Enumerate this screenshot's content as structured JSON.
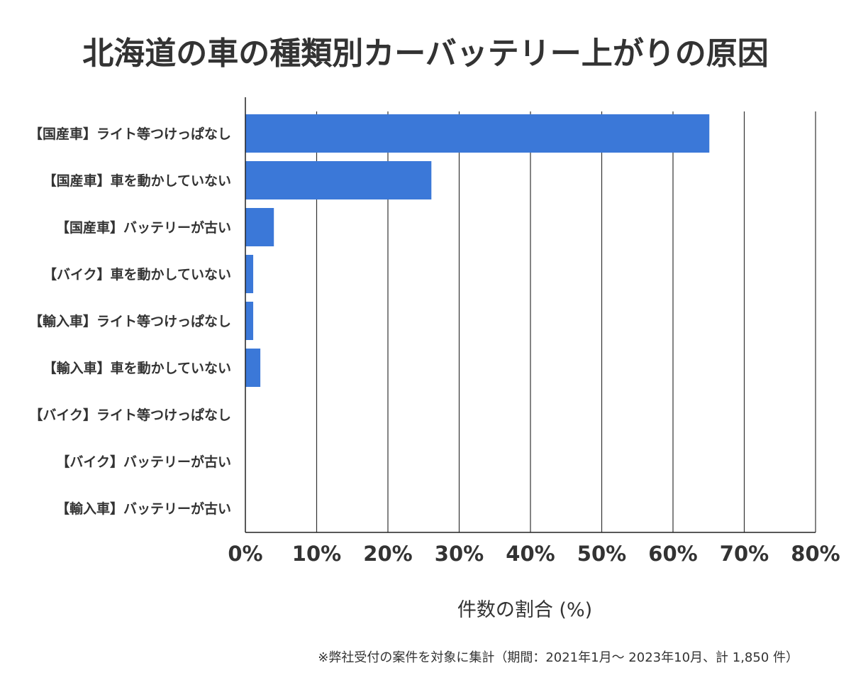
{
  "chart_data": {
    "type": "bar",
    "orientation": "horizontal",
    "title": "北海道の車の種類別カーバッテリー上がりの原因",
    "xlabel": "件数の割合 (%)",
    "ylabel": "",
    "xlim": [
      0,
      80
    ],
    "ticks": [
      0,
      10,
      20,
      30,
      40,
      50,
      60,
      70,
      80
    ],
    "tick_labels": [
      "0%",
      "10%",
      "20%",
      "30%",
      "40%",
      "50%",
      "60%",
      "70%",
      "80%"
    ],
    "grid": true,
    "bar_color": "#3b78d8",
    "categories": [
      "【国産車】ライト等つけっぱなし",
      "【国産車】車を動かしていない",
      "【国産車】バッテリーが古い",
      "【バイク】車を動かしていない",
      "【輸入車】ライト等つけっぱなし",
      "【輸入車】車を動かしていない",
      "【バイク】ライト等つけっぱなし",
      "【バイク】バッテリーが古い",
      "【輸入車】バッテリーが古い"
    ],
    "values": [
      65.1,
      26.1,
      4.0,
      1.1,
      1.1,
      2.1,
      0.0,
      0.0,
      0.0
    ],
    "note": "※弊社受付の案件を対象に集計（期間：2021年1月～ 2023年10月、計 1,850 件）"
  }
}
